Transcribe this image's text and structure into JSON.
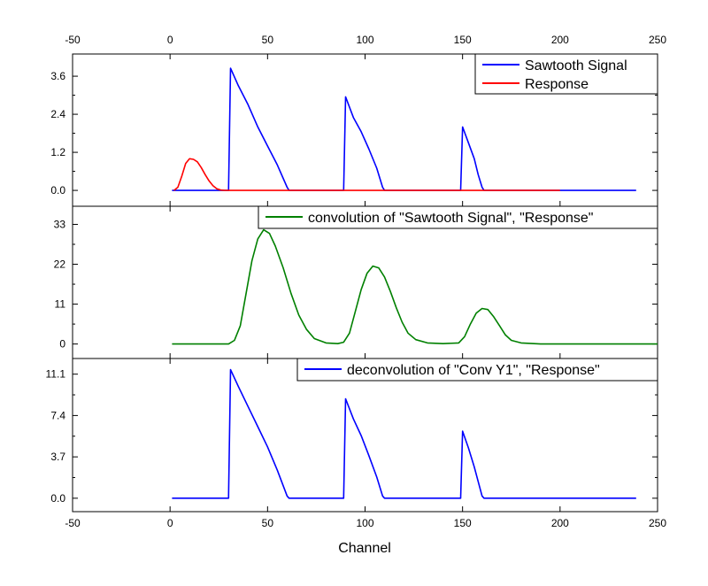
{
  "chart_data": {
    "type": "line",
    "xlabel": "Channel",
    "xlim": [
      -50,
      250
    ],
    "x_ticks": [
      "-50",
      "0",
      "50",
      "100",
      "150",
      "200",
      "250"
    ],
    "x_tick_values": [
      -50,
      0,
      50,
      100,
      150,
      200,
      250
    ],
    "panels": [
      {
        "ylim": [
          -0.5,
          4.3
        ],
        "y_ticks": [
          "0.0",
          "1.2",
          "2.4",
          "3.6"
        ],
        "y_tick_values": [
          0,
          1.2,
          2.4,
          3.6
        ],
        "legend_position": "top-right",
        "series": [
          {
            "name": "Sawtooth Signal",
            "color": "#0000ff",
            "points": [
              [
                1,
                0
              ],
              [
                30,
                0
              ],
              [
                30,
                0.1
              ],
              [
                31,
                3.85
              ],
              [
                35,
                3.3
              ],
              [
                40,
                2.7
              ],
              [
                45,
                2.0
              ],
              [
                50,
                1.4
              ],
              [
                55,
                0.8
              ],
              [
                60,
                0.1
              ],
              [
                61,
                0
              ],
              [
                89,
                0
              ],
              [
                90,
                2.95
              ],
              [
                94,
                2.3
              ],
              [
                98,
                1.85
              ],
              [
                102,
                1.3
              ],
              [
                106,
                0.7
              ],
              [
                109,
                0.1
              ],
              [
                110,
                0
              ],
              [
                149,
                0
              ],
              [
                150,
                2.0
              ],
              [
                153,
                1.5
              ],
              [
                156,
                1.0
              ],
              [
                158,
                0.5
              ],
              [
                160,
                0.1
              ],
              [
                161,
                0
              ],
              [
                239,
                0
              ]
            ]
          },
          {
            "name": "Response",
            "color": "#ff0000",
            "points": [
              [
                2,
                0
              ],
              [
                4,
                0.1
              ],
              [
                6,
                0.45
              ],
              [
                8,
                0.85
              ],
              [
                10,
                1.0
              ],
              [
                12,
                0.98
              ],
              [
                14,
                0.9
              ],
              [
                16,
                0.72
              ],
              [
                18,
                0.5
              ],
              [
                20,
                0.3
              ],
              [
                22,
                0.15
              ],
              [
                24,
                0.05
              ],
              [
                26,
                0.01
              ],
              [
                28,
                0
              ],
              [
                200,
                0
              ]
            ]
          }
        ]
      },
      {
        "ylim": [
          -4,
          38
        ],
        "y_ticks": [
          "0",
          "11",
          "22",
          "33"
        ],
        "y_tick_values": [
          0,
          11,
          22,
          33
        ],
        "legend_position": "top-right",
        "series": [
          {
            "name": "convolution of \"Sawtooth Signal\", \"Response\"",
            "color": "#008000",
            "points": [
              [
                1,
                0
              ],
              [
                30,
                0
              ],
              [
                33,
                1
              ],
              [
                36,
                5
              ],
              [
                39,
                14
              ],
              [
                42,
                23
              ],
              [
                45,
                29
              ],
              [
                48,
                31.5
              ],
              [
                51,
                30.5
              ],
              [
                54,
                27
              ],
              [
                58,
                21
              ],
              [
                62,
                14
              ],
              [
                66,
                8
              ],
              [
                70,
                4
              ],
              [
                74,
                1.5
              ],
              [
                80,
                0.3
              ],
              [
                86,
                0.1
              ],
              [
                89,
                0.5
              ],
              [
                92,
                3
              ],
              [
                95,
                9
              ],
              [
                98,
                15
              ],
              [
                101,
                19.5
              ],
              [
                104,
                21.5
              ],
              [
                107,
                21
              ],
              [
                110,
                18.5
              ],
              [
                113,
                14.5
              ],
              [
                116,
                10
              ],
              [
                119,
                6
              ],
              [
                122,
                3
              ],
              [
                126,
                1.2
              ],
              [
                132,
                0.3
              ],
              [
                140,
                0.1
              ],
              [
                148,
                0.3
              ],
              [
                151,
                2
              ],
              [
                154,
                5.5
              ],
              [
                157,
                8.5
              ],
              [
                160,
                9.8
              ],
              [
                163,
                9.5
              ],
              [
                166,
                7.5
              ],
              [
                169,
                5
              ],
              [
                172,
                2.5
              ],
              [
                175,
                1
              ],
              [
                180,
                0.3
              ],
              [
                190,
                0
              ],
              [
                250,
                0
              ]
            ]
          }
        ]
      },
      {
        "ylim": [
          -1.2,
          12.5
        ],
        "y_ticks": [
          "0.0",
          "3.7",
          "7.4",
          "11.1"
        ],
        "y_tick_values": [
          0,
          3.7,
          7.4,
          11.1
        ],
        "legend_position": "top-right",
        "series": [
          {
            "name": "deconvolution of \"Conv Y1\", \"Response\"",
            "color": "#0000ff",
            "points": [
              [
                1,
                0
              ],
              [
                30,
                0
              ],
              [
                30,
                0.3
              ],
              [
                31,
                11.5
              ],
              [
                35,
                10
              ],
              [
                40,
                8.2
              ],
              [
                45,
                6.4
              ],
              [
                50,
                4.6
              ],
              [
                55,
                2.5
              ],
              [
                60,
                0.2
              ],
              [
                61,
                0
              ],
              [
                89,
                0
              ],
              [
                90,
                8.9
              ],
              [
                94,
                7.1
              ],
              [
                98,
                5.6
              ],
              [
                102,
                3.8
              ],
              [
                106,
                1.9
              ],
              [
                109,
                0.2
              ],
              [
                110,
                0
              ],
              [
                149,
                0
              ],
              [
                150,
                6
              ],
              [
                153,
                4.5
              ],
              [
                156,
                2.8
              ],
              [
                158,
                1.5
              ],
              [
                160,
                0.2
              ],
              [
                161,
                0
              ],
              [
                239,
                0
              ]
            ]
          }
        ]
      }
    ]
  }
}
